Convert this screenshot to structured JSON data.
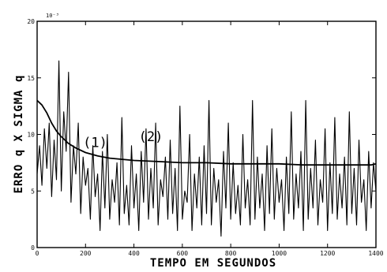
{
  "chart_data": {
    "type": "line",
    "title": "",
    "xlabel": "TEMPO EM SEGUNDOS",
    "ylabel": "ERRO q  X  SIGMA q",
    "y_multiplier": "10⁻³",
    "xlim": [
      0,
      1400
    ],
    "ylim": [
      0,
      20
    ],
    "x_ticks": [
      0,
      200,
      400,
      600,
      800,
      1000,
      1200,
      1400
    ],
    "x_tick_labels": [
      "0",
      "200",
      "400",
      "600",
      "800",
      "1000",
      "1200",
      "1400"
    ],
    "y_ticks": [
      0,
      5,
      10,
      15,
      20
    ],
    "y_tick_labels": [
      "0",
      "5",
      "10",
      "15",
      "20"
    ],
    "grid": false,
    "annotations": [
      {
        "text": "(1)",
        "x": 240,
        "y": 8.9
      },
      {
        "text": "(2)",
        "x": 470,
        "y": 9.4
      }
    ],
    "series": [
      {
        "id": "sigma",
        "x": [
          0,
          20,
          40,
          60,
          80,
          100,
          130,
          160,
          200,
          250,
          300,
          400,
          500,
          600,
          700,
          800,
          900,
          1000,
          1100,
          1200,
          1300,
          1380,
          1400
        ],
        "values": [
          13.0,
          12.6,
          11.9,
          11.0,
          10.3,
          9.8,
          9.2,
          8.8,
          8.4,
          8.1,
          7.9,
          7.7,
          7.6,
          7.5,
          7.5,
          7.4,
          7.4,
          7.4,
          7.3,
          7.3,
          7.3,
          7.3,
          7.4
        ]
      },
      {
        "id": "erro",
        "x": [
          0,
          10,
          20,
          30,
          40,
          50,
          60,
          70,
          80,
          90,
          100,
          110,
          120,
          130,
          140,
          150,
          160,
          170,
          180,
          190,
          200,
          210,
          220,
          230,
          240,
          250,
          260,
          270,
          280,
          290,
          300,
          310,
          320,
          330,
          340,
          350,
          360,
          370,
          380,
          390,
          400,
          410,
          420,
          430,
          440,
          450,
          460,
          470,
          480,
          490,
          500,
          510,
          520,
          530,
          540,
          550,
          560,
          570,
          580,
          590,
          600,
          610,
          620,
          630,
          640,
          650,
          660,
          670,
          680,
          690,
          700,
          710,
          720,
          730,
          740,
          750,
          760,
          770,
          780,
          790,
          800,
          810,
          820,
          830,
          840,
          850,
          860,
          870,
          880,
          890,
          900,
          910,
          920,
          930,
          940,
          950,
          960,
          970,
          980,
          990,
          1000,
          1010,
          1020,
          1030,
          1040,
          1050,
          1060,
          1070,
          1080,
          1090,
          1100,
          1110,
          1120,
          1130,
          1140,
          1150,
          1160,
          1170,
          1180,
          1190,
          1200,
          1210,
          1220,
          1230,
          1240,
          1250,
          1260,
          1270,
          1280,
          1290,
          1300,
          1310,
          1320,
          1330,
          1340,
          1350,
          1360,
          1370,
          1380,
          1390,
          1400
        ],
        "values": [
          6.5,
          9.0,
          5.5,
          10.5,
          7.0,
          11.0,
          4.5,
          9.5,
          6.0,
          16.5,
          5.0,
          12.0,
          8.5,
          15.5,
          4.0,
          9.0,
          6.5,
          11.0,
          3.0,
          8.0,
          5.5,
          7.0,
          2.5,
          9.0,
          4.5,
          6.5,
          1.5,
          8.5,
          3.5,
          10.0,
          2.5,
          6.0,
          4.0,
          7.5,
          2.0,
          11.5,
          3.0,
          5.5,
          2.0,
          9.0,
          3.5,
          6.5,
          1.5,
          8.5,
          4.0,
          10.5,
          2.5,
          7.0,
          3.5,
          11.0,
          2.0,
          6.0,
          4.5,
          8.0,
          2.5,
          9.5,
          3.0,
          7.0,
          1.5,
          12.5,
          2.5,
          5.0,
          4.0,
          10.0,
          1.5,
          6.5,
          3.5,
          8.0,
          2.0,
          9.0,
          3.0,
          13.0,
          2.0,
          7.0,
          4.0,
          6.0,
          1.0,
          8.5,
          3.5,
          11.0,
          2.5,
          7.5,
          3.0,
          5.5,
          2.0,
          10.0,
          3.5,
          6.0,
          2.0,
          13.0,
          2.5,
          8.0,
          3.5,
          6.5,
          1.5,
          9.0,
          3.0,
          10.5,
          2.5,
          7.0,
          4.0,
          6.0,
          1.5,
          8.0,
          3.0,
          12.0,
          2.5,
          6.5,
          3.5,
          8.5,
          1.5,
          13.0,
          2.5,
          7.0,
          3.5,
          9.5,
          2.0,
          6.0,
          4.0,
          10.5,
          1.5,
          7.5,
          3.0,
          11.5,
          2.5,
          6.5,
          3.5,
          8.0,
          2.0,
          12.0,
          3.0,
          7.0,
          2.0,
          9.5,
          4.0,
          6.0,
          1.5,
          8.5,
          3.5,
          7.5,
          5.0
        ]
      }
    ]
  }
}
